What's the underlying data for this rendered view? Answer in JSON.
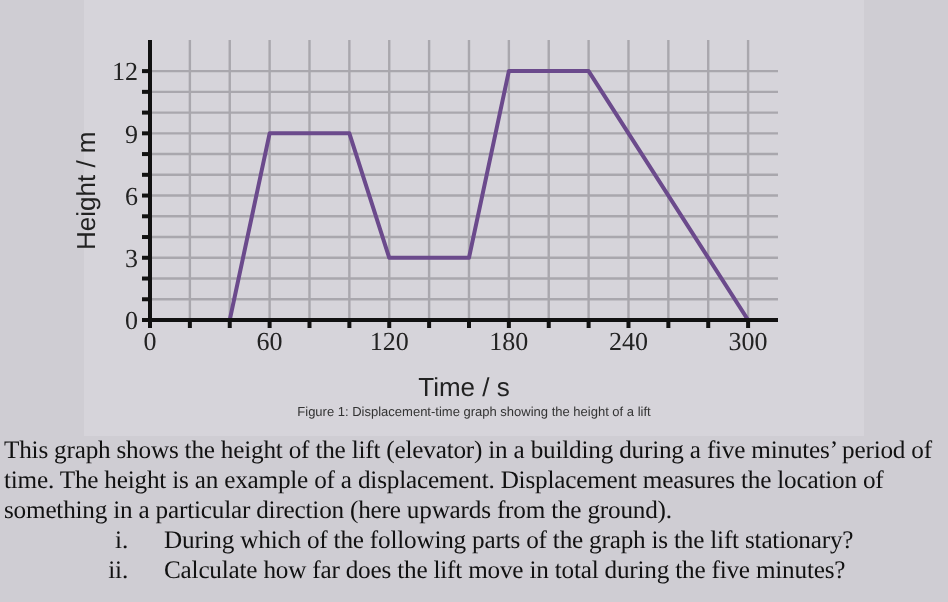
{
  "chart_data": {
    "type": "line",
    "xlabel": "Time / s",
    "ylabel": "Height / m",
    "subtitle": "Figure 1: Displacement-time graph showing the height of a lift",
    "x": [
      0,
      40,
      60,
      100,
      120,
      160,
      180,
      220,
      300
    ],
    "series": [
      {
        "color": "#6b4a8c",
        "values": [
          0,
          0,
          9,
          9,
          3,
          3,
          12,
          12,
          0
        ]
      }
    ],
    "xlim": [
      0,
      315
    ],
    "ylim": [
      0,
      13.5
    ],
    "xticks": [
      0,
      {
        "value": 20,
        "label": null
      },
      {
        "value": 40,
        "label": null
      },
      60,
      {
        "value": 80,
        "label": null
      },
      {
        "value": 100,
        "label": null
      },
      120,
      {
        "value": 140,
        "label": null
      },
      {
        "value": 160,
        "label": null
      },
      180,
      {
        "value": 200,
        "label": null
      },
      {
        "value": 220,
        "label": null
      },
      240,
      {
        "value": 260,
        "label": null
      },
      {
        "value": 280,
        "label": null
      },
      300
    ],
    "yticks": [
      0,
      {
        "value": 1,
        "label": null
      },
      {
        "value": 2,
        "label": null
      },
      3,
      {
        "value": 4,
        "label": null
      },
      {
        "value": 5,
        "label": null
      },
      6,
      {
        "value": 7,
        "label": null
      },
      {
        "value": 8,
        "label": null
      },
      9,
      {
        "value": 10,
        "label": null
      },
      {
        "value": 11,
        "label": null
      },
      12
    ],
    "grid": true,
    "marker": "none",
    "line_style": "solid",
    "legend": false,
    "annotations": [
      "This graph shows the height of the lift (elevator) in a building during a five minutes’ period of time. The height is an example of a displacement. Displacement measures the location of something in a particular direction (here upwards from the ground).",
      "i.\tDuring which of the following parts of the graph is the lift stationary?",
      "ii.\tCalculate how far does the lift move in total during the five minutes?"
    ]
  }
}
